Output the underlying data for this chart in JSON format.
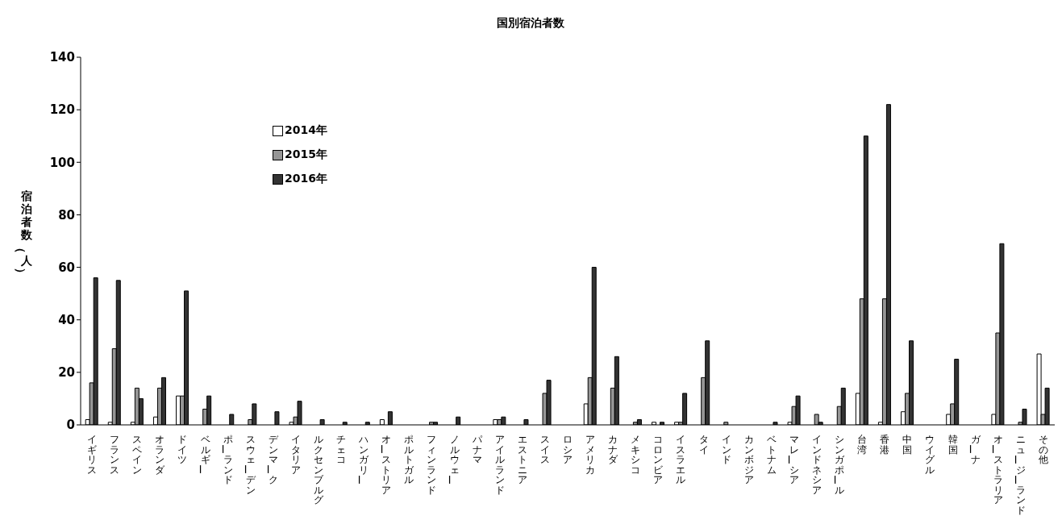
{
  "chart_data": {
    "type": "bar",
    "title": "国別宿泊者数",
    "ylabel": "宿泊者数（人）",
    "categories": [
      "イギリス",
      "フランス",
      "スペイン",
      "オランダ",
      "ドイツ",
      "ベルギー",
      "ポーランド",
      "スウェーデン",
      "デンマーク",
      "イタリア",
      "ルクセンブルグ",
      "チェコ",
      "ハンガリー",
      "オーストリア",
      "ポルトガル",
      "フィンランド",
      "ノルウェー",
      "パナマ",
      "アイルランド",
      "エストニア",
      "スイス",
      "ロシア",
      "アメリカ",
      "カナダ",
      "メキシコ",
      "コロンビア",
      "イスラエル",
      "タイ",
      "インド",
      "カンボジア",
      "ベトナム",
      "マレーシア",
      "インドネシア",
      "シンガポール",
      "台湾",
      "香港",
      "中国",
      "ウイグル",
      "韓国",
      "ガーナ",
      "オーストラリア",
      "ニュージーランド",
      "その他"
    ],
    "series": [
      {
        "name": "2014年",
        "color": "#ffffff",
        "values": [
          2,
          1,
          1,
          3,
          11,
          0,
          0,
          0,
          0,
          1,
          0,
          0,
          0,
          2,
          0,
          0,
          0,
          0,
          2,
          0,
          0,
          0,
          8,
          0,
          0,
          1,
          1,
          0,
          0,
          0,
          0,
          1,
          0,
          0,
          12,
          1,
          5,
          0,
          4,
          0,
          4,
          0,
          27
        ]
      },
      {
        "name": "2015年",
        "color": "#969696",
        "values": [
          16,
          29,
          14,
          14,
          11,
          6,
          0,
          2,
          0,
          3,
          0,
          0,
          0,
          0,
          0,
          1,
          0,
          0,
          2,
          0,
          12,
          0,
          18,
          14,
          1,
          0,
          1,
          18,
          1,
          0,
          0,
          7,
          4,
          7,
          48,
          48,
          12,
          0,
          8,
          0,
          35,
          1,
          4
        ]
      },
      {
        "name": "2016年",
        "color": "#333333",
        "values": [
          56,
          55,
          10,
          18,
          51,
          11,
          4,
          8,
          5,
          9,
          2,
          1,
          1,
          5,
          0,
          1,
          3,
          0,
          3,
          2,
          17,
          0,
          60,
          26,
          2,
          1,
          12,
          32,
          0,
          0,
          1,
          11,
          1,
          14,
          110,
          122,
          32,
          0,
          25,
          0,
          69,
          6,
          14
        ]
      }
    ],
    "ylim": [
      0,
      140
    ],
    "yticks": [
      0,
      20,
      40,
      60,
      80,
      100,
      120,
      140
    ],
    "grid": false,
    "legend": "top left"
  }
}
